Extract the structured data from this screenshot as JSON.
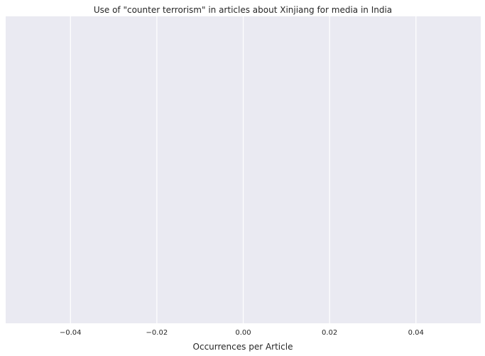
{
  "chart_data": {
    "type": "bar",
    "title": "Use of \"counter terrorism\" in articles about Xinjiang for media in India",
    "xlabel": "Occurrences per Article",
    "ylabel": "",
    "orientation": "horizontal",
    "categories": [],
    "values": [],
    "xlim": [
      -0.055,
      0.055
    ],
    "xticks": [
      -0.04,
      -0.02,
      0.0,
      0.02,
      0.04
    ],
    "xtick_labels": [
      "−0.04",
      "−0.02",
      "0.00",
      "0.02",
      "0.04"
    ],
    "grid": true,
    "style": "seaborn-darkgrid",
    "colors": {
      "plot_background": "#eaeaf2",
      "grid": "#ffffff",
      "text": "#262626"
    }
  }
}
